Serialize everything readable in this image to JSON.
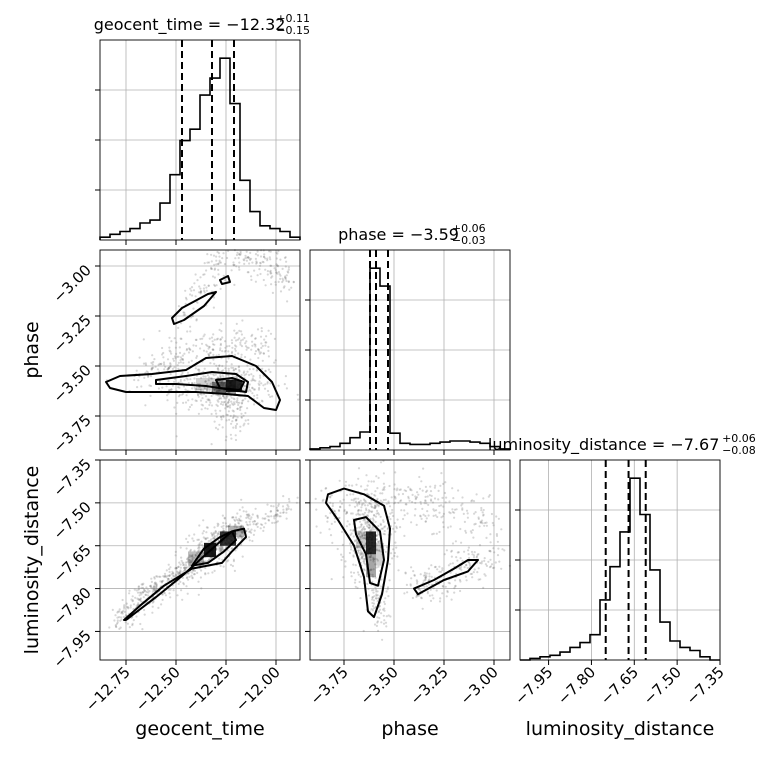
{
  "chart_data": {
    "type": "corner",
    "parameters": [
      "geocent_time",
      "phase",
      "luminosity_distance"
    ],
    "ranges": {
      "geocent_time": [
        -12.88,
        -11.88
      ],
      "phase": [
        -3.92,
        -2.92
      ],
      "luminosity_distance": [
        -8.05,
        -7.35
      ]
    },
    "ticks": {
      "geocent_time": [
        "-12.75",
        "-12.50",
        "-12.25",
        "-12.00"
      ],
      "phase": [
        "-3.75",
        "-3.50",
        "-3.25",
        "-3.00"
      ],
      "luminosity_distance": [
        "-7.95",
        "-7.80",
        "-7.65",
        "-7.50",
        "-7.35"
      ]
    },
    "tick_values": {
      "geocent_time": [
        -12.75,
        -12.5,
        -12.25,
        -12.0
      ],
      "phase": [
        -3.75,
        -3.5,
        -3.25,
        -3.0
      ],
      "luminosity_distance": [
        -7.95,
        -7.8,
        -7.65,
        -7.5,
        -7.35
      ]
    },
    "titles": [
      {
        "param": "geocent_time",
        "prefix": "geocent_time = ",
        "value": "−12.32",
        "plus": "+0.11",
        "minus": "−0.15",
        "median": -12.32,
        "lo": -12.47,
        "hi": -12.21
      },
      {
        "param": "phase",
        "prefix": "phase = ",
        "value": "−3.59",
        "plus": "+0.06",
        "minus": "−0.03",
        "median": -3.59,
        "lo": -3.62,
        "hi": -3.53
      },
      {
        "param": "luminosity_distance",
        "prefix": "luminosity_distance = ",
        "value": "−7.67",
        "plus": "+0.06",
        "minus": "−0.08",
        "median": -7.67,
        "lo": -7.75,
        "hi": -7.61
      }
    ],
    "histograms": {
      "geocent_time": {
        "bin_edges": [
          -12.88,
          -12.83,
          -12.78,
          -12.73,
          -12.68,
          -12.63,
          -12.58,
          -12.53,
          -12.48,
          -12.43,
          -12.38,
          -12.33,
          -12.28,
          -12.23,
          -12.18,
          -12.13,
          -12.08,
          -12.03,
          -11.98,
          -11.93,
          -11.88
        ],
        "counts": [
          1,
          2,
          3,
          4,
          6,
          7,
          13,
          23,
          35,
          39,
          51,
          57,
          64,
          48,
          21,
          10,
          5,
          4,
          3,
          1
        ]
      },
      "phase": {
        "bin_edges": [
          -3.92,
          -3.87,
          -3.82,
          -3.77,
          -3.72,
          -3.67,
          -3.62,
          -3.57,
          -3.52,
          -3.47,
          -3.42,
          -3.37,
          -3.32,
          -3.27,
          -3.22,
          -3.17,
          -3.12,
          -3.07,
          -3.02,
          -2.97,
          -2.92
        ],
        "counts": [
          1,
          2,
          3,
          6,
          11,
          16,
          162,
          146,
          15,
          6,
          5,
          5,
          6,
          7,
          8,
          8,
          7,
          6,
          3,
          1
        ]
      },
      "luminosity_distance": {
        "bin_edges": [
          -8.05,
          -8.015,
          -7.98,
          -7.945,
          -7.91,
          -7.875,
          -7.84,
          -7.805,
          -7.77,
          -7.735,
          -7.7,
          -7.665,
          -7.63,
          -7.595,
          -7.56,
          -7.525,
          -7.49,
          -7.455,
          -7.42,
          -7.385,
          -7.35
        ],
        "counts": [
          0,
          1,
          2,
          3,
          5,
          8,
          11,
          16,
          38,
          59,
          81,
          115,
          92,
          57,
          24,
          12,
          8,
          6,
          2,
          0
        ]
      }
    },
    "axis_labels": {
      "x": [
        "geocent_time",
        "phase",
        "luminosity_distance"
      ],
      "y": [
        "phase",
        "luminosity_distance"
      ]
    },
    "grid": true
  }
}
